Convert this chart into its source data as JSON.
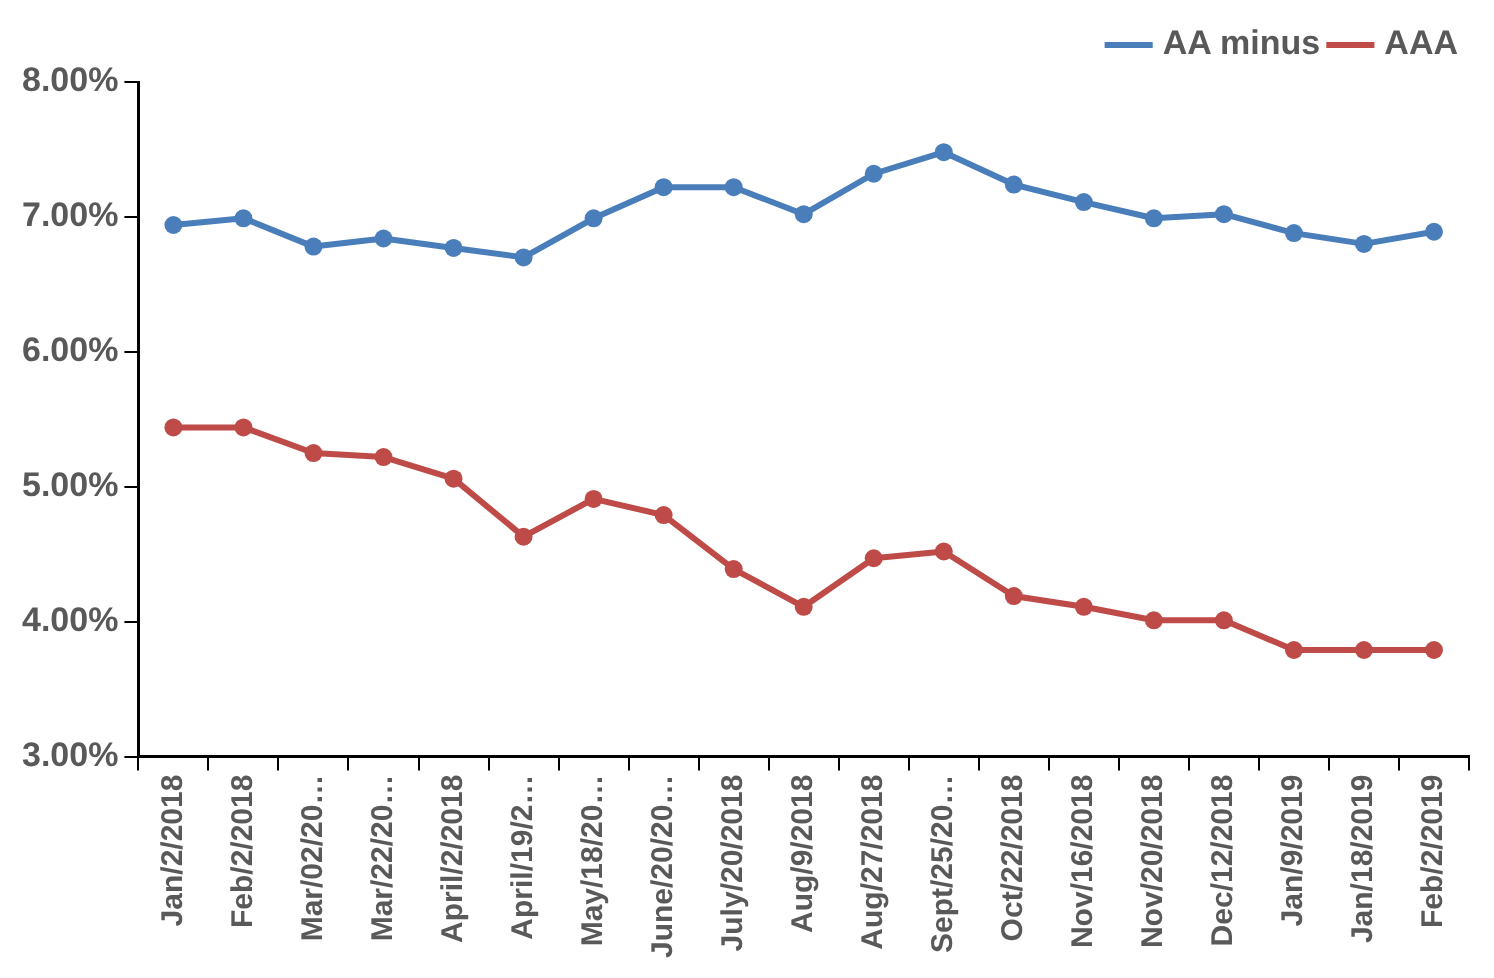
{
  "chart_data": {
    "type": "line",
    "categories": [
      "Jan/2/2018",
      "Feb/2/2018",
      "Mar/02/20…",
      "Mar/22/20…",
      "April/2/2018",
      "April/19/2…",
      "May/18/20…",
      "June/20/20…",
      "July/20/2018",
      "Aug/9/2018",
      "Aug/27/2018",
      "Sept/25/20…",
      "Oct/22/2018",
      "Nov/16/2018",
      "Nov/20/2018",
      "Dec/12/2018",
      "Jan/9/2019",
      "Jan/18/2019",
      "Feb/2/2019"
    ],
    "series": [
      {
        "name": "AA minus",
        "color": "#4a7ebb",
        "values": [
          6.94,
          6.99,
          6.78,
          6.84,
          6.77,
          6.7,
          6.99,
          7.22,
          7.22,
          7.02,
          7.32,
          7.48,
          7.24,
          7.11,
          6.99,
          7.02,
          6.88,
          6.8,
          6.89
        ]
      },
      {
        "name": "AAA",
        "color": "#be4b48",
        "values": [
          5.44,
          5.44,
          5.25,
          5.22,
          5.06,
          4.63,
          4.91,
          4.79,
          4.39,
          4.11,
          4.47,
          4.52,
          4.19,
          4.11,
          4.01,
          4.01,
          3.79,
          3.79,
          3.79
        ]
      }
    ],
    "ylim": [
      3,
      8
    ],
    "yticks": [
      {
        "value": 3,
        "label": "3.00%"
      },
      {
        "value": 4,
        "label": "4.00%"
      },
      {
        "value": 5,
        "label": "5.00%"
      },
      {
        "value": 6,
        "label": "6.00%"
      },
      {
        "value": 7,
        "label": "7.00%"
      },
      {
        "value": 8,
        "label": "8.00%"
      }
    ],
    "grid": false,
    "legend": "top right",
    "marker": "circle",
    "line_style": "solid"
  }
}
